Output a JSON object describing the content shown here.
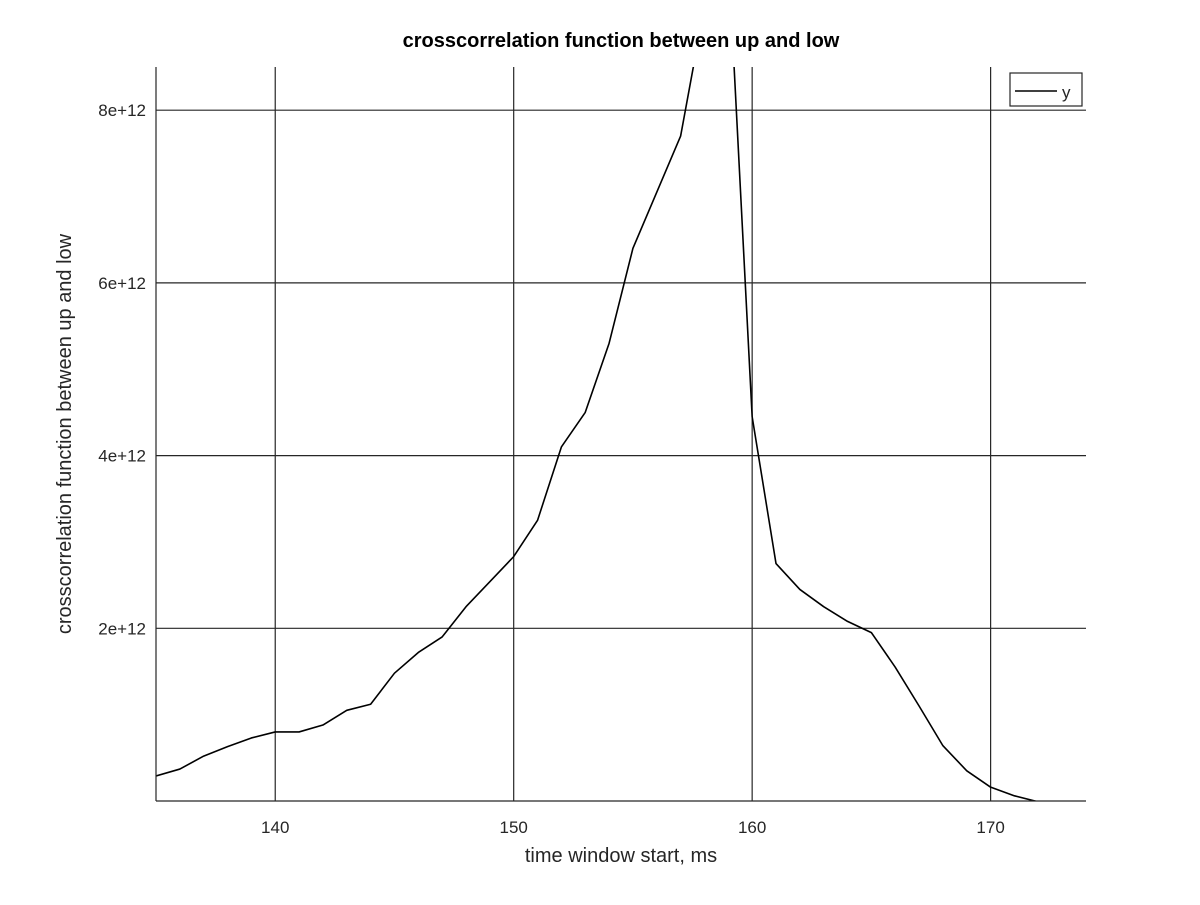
{
  "chart_data": {
    "type": "line",
    "title": "crosscorrelation function between up and low",
    "xlabel": "time window start, ms",
    "ylabel": "crosscorrelation function between up and low",
    "xlim": [
      135,
      174
    ],
    "ylim": [
      0,
      8500000000000
    ],
    "xticks": [
      140,
      150,
      160,
      170
    ],
    "xtick_labels": [
      "140",
      "150",
      "160",
      "170"
    ],
    "yticks": [
      2000000000000,
      4000000000000,
      6000000000000,
      8000000000000
    ],
    "ytick_labels": [
      "2e+12",
      "4e+12",
      "6e+12",
      "8e+12"
    ],
    "grid": true,
    "legend_position": "top-right",
    "series": [
      {
        "name": "y",
        "color": "#000000",
        "x": [
          135,
          136,
          137,
          138,
          139,
          140,
          141,
          142,
          143,
          144,
          145,
          146,
          147,
          148,
          149,
          150,
          151,
          152,
          153,
          154,
          155,
          156,
          157,
          158,
          159,
          160,
          161,
          162,
          163,
          164,
          165,
          166,
          167,
          168,
          169,
          170,
          171,
          172,
          173,
          174
        ],
        "y": [
          290000000000,
          370000000000,
          520000000000,
          630000000000,
          730000000000,
          800000000000,
          800000000000,
          880000000000,
          1050000000000,
          1120000000000,
          1480000000000,
          1720000000000,
          1900000000000,
          2250000000000,
          2540000000000,
          2830000000000,
          3250000000000,
          4100000000000,
          4500000000000,
          5300000000000,
          6400000000000,
          7050000000000,
          7700000000000,
          9200000000000,
          9800000000000,
          4450000000000,
          2750000000000,
          2450000000000,
          2250000000000,
          2080000000000,
          1950000000000,
          1550000000000,
          1100000000000,
          640000000000,
          350000000000,
          160000000000,
          60000000000,
          -10000000000,
          -120000000000,
          -200000000000
        ]
      }
    ]
  }
}
